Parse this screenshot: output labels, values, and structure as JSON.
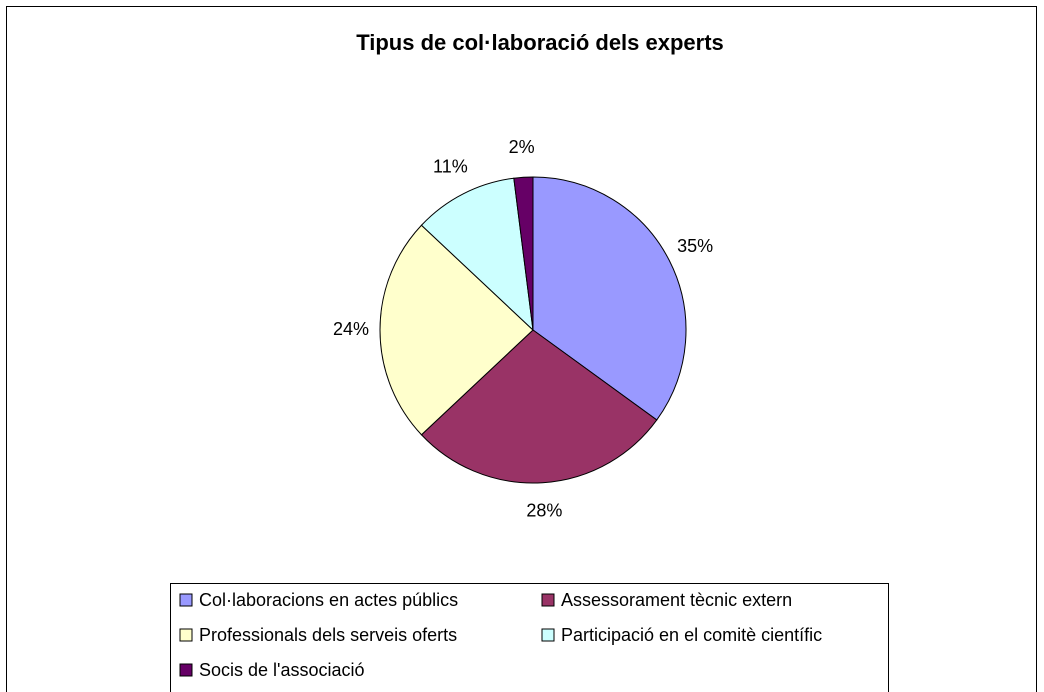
{
  "chart_data": {
    "type": "pie",
    "title": "Tipus de col·laboració dels experts",
    "categories": [
      "Col·laboracions en actes públics",
      "Assessorament tècnic extern",
      "Professionals dels serveis oferts",
      "Participació en el comitè científic",
      "Socis de l'associació"
    ],
    "values": [
      35,
      28,
      24,
      11,
      2
    ],
    "value_labels": [
      "35%",
      "28%",
      "24%",
      "11%",
      "2%"
    ],
    "colors": [
      "#9999ff",
      "#993366",
      "#ffffcc",
      "#ccffff",
      "#660066"
    ],
    "legend": "bottom"
  }
}
